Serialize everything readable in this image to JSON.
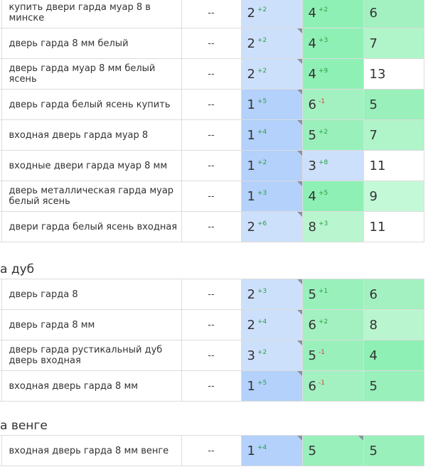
{
  "palette": {
    "blue_1": "#b3d1fb",
    "blue_2": "#cee0fb",
    "green_3": "#cde9f8",
    "green_4": "#90eeb6",
    "green_5": "#a6f0c1",
    "green_6": "#b3f4cb",
    "green_7": "#c2f8d5",
    "white": "#ffffff"
  },
  "groups": [
    {
      "title": "",
      "rows": [
        {
          "keyword": "купить двери гарда муар 8 в минске",
          "col1": "--",
          "c": [
            {
              "v": "2",
              "d": "+2",
              "bg": "#cde0fb",
              "corner": false
            },
            {
              "v": "4",
              "d": "+2",
              "bg": "#8ff0b5",
              "corner": false
            },
            {
              "v": "6",
              "d": "",
              "bg": "#a3f0c0",
              "corner": false
            }
          ]
        },
        {
          "keyword": "дверь гарда 8 мм белый",
          "col1": "--",
          "c": [
            {
              "v": "2",
              "d": "+2",
              "bg": "#cde0fb",
              "corner": true
            },
            {
              "v": "4",
              "d": "+3",
              "bg": "#8ff0b5",
              "corner": false
            },
            {
              "v": "7",
              "d": "",
              "bg": "#b0f4c9",
              "corner": false
            }
          ]
        },
        {
          "keyword": "дверь гарда муар 8 мм белый ясень",
          "col1": "--",
          "c": [
            {
              "v": "2",
              "d": "+2",
              "bg": "#cde0fb",
              "corner": true
            },
            {
              "v": "4",
              "d": "+9",
              "bg": "#8ff0b5",
              "corner": false
            },
            {
              "v": "13",
              "d": "",
              "bg": "#ffffff",
              "corner": false
            }
          ]
        },
        {
          "keyword": "дверь гарда белый ясень купить",
          "col1": "--",
          "c": [
            {
              "v": "1",
              "d": "+5",
              "bg": "#b3d1fb",
              "corner": true
            },
            {
              "v": "6",
              "d": "-1",
              "bg": "#a3f0c0",
              "corner": false
            },
            {
              "v": "5",
              "d": "",
              "bg": "#99f0bb",
              "corner": false
            }
          ]
        },
        {
          "keyword": "входная дверь гарда муар 8",
          "col1": "--",
          "c": [
            {
              "v": "1",
              "d": "+4",
              "bg": "#b3d1fb",
              "corner": true
            },
            {
              "v": "5",
              "d": "+2",
              "bg": "#99f0bb",
              "corner": false
            },
            {
              "v": "7",
              "d": "",
              "bg": "#b0f4c9",
              "corner": false
            }
          ]
        },
        {
          "keyword": "входные двери гарда муар 8 мм",
          "col1": "--",
          "c": [
            {
              "v": "1",
              "d": "+2",
              "bg": "#b3d1fb",
              "corner": true
            },
            {
              "v": "3",
              "d": "+8",
              "bg": "#cde0fb",
              "corner": false
            },
            {
              "v": "11",
              "d": "",
              "bg": "#ffffff",
              "corner": false
            }
          ]
        },
        {
          "keyword": "дверь металлическая гарда муар белый ясень",
          "col1": "--",
          "c": [
            {
              "v": "1",
              "d": "+3",
              "bg": "#b3d1fb",
              "corner": true
            },
            {
              "v": "4",
              "d": "+5",
              "bg": "#8ff0b5",
              "corner": false
            },
            {
              "v": "9",
              "d": "",
              "bg": "#c4f9d8",
              "corner": false
            }
          ]
        },
        {
          "keyword": "двери гарда белый ясень входная",
          "col1": "--",
          "c": [
            {
              "v": "2",
              "d": "+6",
              "bg": "#cde0fb",
              "corner": true
            },
            {
              "v": "8",
              "d": "+3",
              "bg": "#b9f6cf",
              "corner": false
            },
            {
              "v": "11",
              "d": "",
              "bg": "#ffffff",
              "corner": false
            }
          ]
        }
      ]
    },
    {
      "title": "а дуб",
      "rows": [
        {
          "keyword": "дверь гарда 8",
          "col1": "--",
          "c": [
            {
              "v": "2",
              "d": "+3",
              "bg": "#cde0fb",
              "corner": true
            },
            {
              "v": "5",
              "d": "+1",
              "bg": "#99f0bb",
              "corner": false
            },
            {
              "v": "6",
              "d": "",
              "bg": "#a3f0c0",
              "corner": false
            }
          ]
        },
        {
          "keyword": "дверь гарда 8 мм",
          "col1": "--",
          "c": [
            {
              "v": "2",
              "d": "+4",
              "bg": "#cde0fb",
              "corner": true
            },
            {
              "v": "6",
              "d": "+2",
              "bg": "#a3f0c0",
              "corner": false
            },
            {
              "v": "8",
              "d": "",
              "bg": "#b9f6cf",
              "corner": false
            }
          ]
        },
        {
          "keyword": "дверь гарда рустикальный дуб дверь входная",
          "col1": "--",
          "c": [
            {
              "v": "3",
              "d": "+2",
              "bg": "#cde0fb",
              "corner": true
            },
            {
              "v": "5",
              "d": "-1",
              "bg": "#99f0bb",
              "corner": false
            },
            {
              "v": "4",
              "d": "",
              "bg": "#8ff0b5",
              "corner": false
            }
          ]
        },
        {
          "keyword": "входная дверь гарда 8 мм",
          "col1": "--",
          "c": [
            {
              "v": "1",
              "d": "+5",
              "bg": "#b3d1fb",
              "corner": true
            },
            {
              "v": "6",
              "d": "-1",
              "bg": "#a3f0c0",
              "corner": false
            },
            {
              "v": "5",
              "d": "",
              "bg": "#99f0bb",
              "corner": false
            }
          ]
        }
      ]
    },
    {
      "title": "а венге",
      "rows": [
        {
          "keyword": "входная дверь гарда 8 мм венге",
          "col1": "--",
          "c": [
            {
              "v": "1",
              "d": "+4",
              "bg": "#b3d1fb",
              "corner": true
            },
            {
              "v": "5",
              "d": "",
              "bg": "#99f0bb",
              "corner": true
            },
            {
              "v": "5",
              "d": "",
              "bg": "#99f0bb",
              "corner": false
            }
          ]
        }
      ]
    }
  ]
}
